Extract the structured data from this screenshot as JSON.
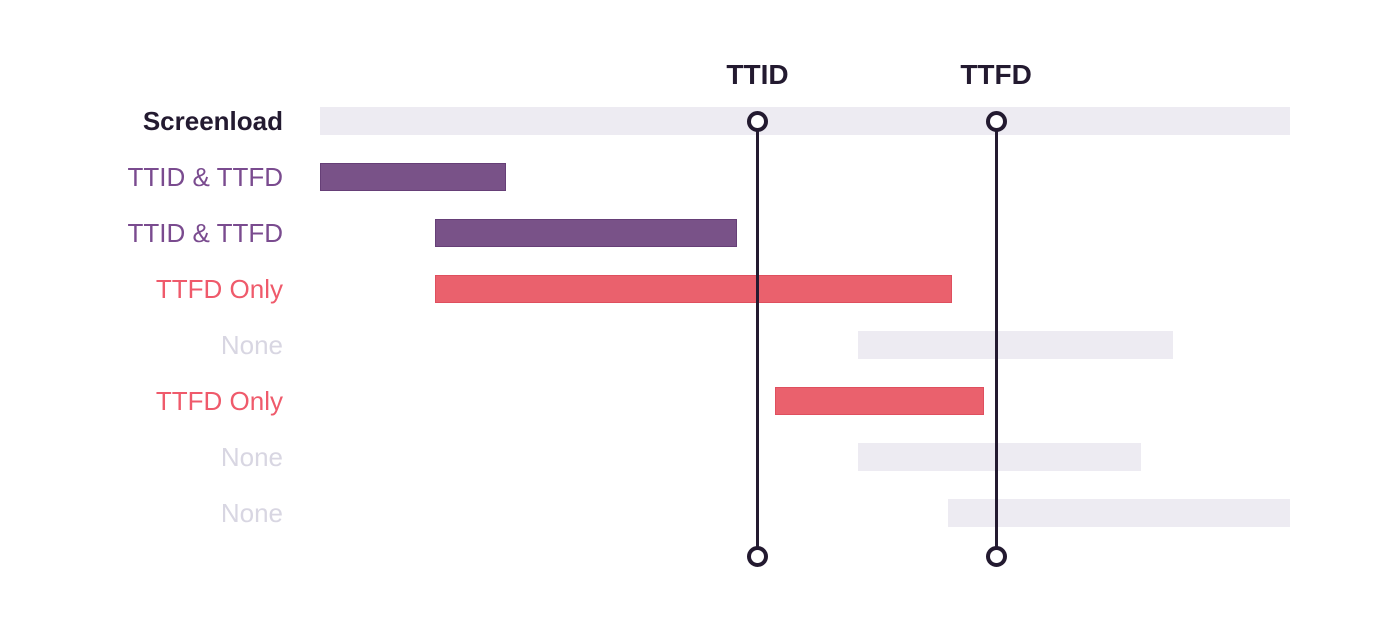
{
  "chart_data": {
    "type": "bar",
    "variant": "gantt-span-diagram",
    "title": "",
    "axis": {
      "min": 0,
      "max": 1000,
      "unit": "relative-time",
      "grid": false,
      "ticks": []
    },
    "markers": [
      {
        "id": "ttid",
        "label": "TTID",
        "t": 451
      },
      {
        "id": "ttfd",
        "label": "TTFD",
        "t": 697
      }
    ],
    "rows": [
      {
        "label": "Screenload",
        "kind": "screenload",
        "start": 0,
        "end": 1000
      },
      {
        "label": "TTID & TTFD",
        "kind": "ttid-ttfd",
        "start": 0,
        "end": 192
      },
      {
        "label": "TTID & TTFD",
        "kind": "ttid-ttfd",
        "start": 119,
        "end": 430
      },
      {
        "label": "TTFD Only",
        "kind": "ttfd-only",
        "start": 119,
        "end": 652
      },
      {
        "label": "None",
        "kind": "none",
        "start": 555,
        "end": 879
      },
      {
        "label": "TTFD Only",
        "kind": "ttfd-only",
        "start": 469,
        "end": 685
      },
      {
        "label": "None",
        "kind": "none",
        "start": 555,
        "end": 846
      },
      {
        "label": "None",
        "kind": "none",
        "start": 647,
        "end": 1000
      }
    ],
    "colors": {
      "screenload_bar": "#EDEBF2",
      "ttid_ttfd_bar": "#795288",
      "ttfd_only_bar": "#EA616D",
      "none_bar": "#EDEBF2",
      "screenload_label": "#231A30",
      "ttid_ttfd_label": "#7A4B8F",
      "ttfd_only_label": "#EF5A6B",
      "none_label": "#D8D6E2",
      "marker_line": "#231A30",
      "marker_label": "#231A30",
      "background": "#FFFFFF"
    },
    "legend": null
  }
}
